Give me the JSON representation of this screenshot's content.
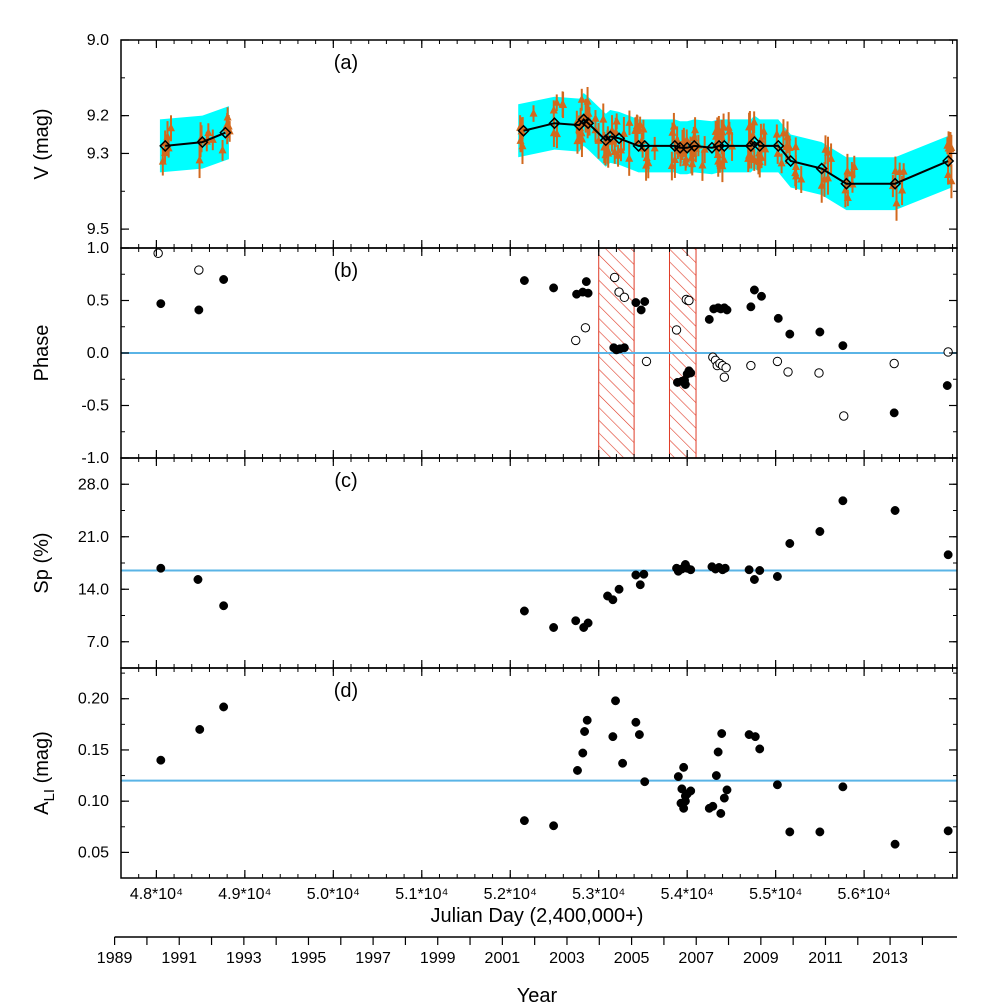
{
  "x_axis": {
    "title": "Julian Day  (2,400,000+)",
    "ticks": [
      {
        "value": 48000,
        "label": "4.8*10⁴"
      },
      {
        "value": 49000,
        "label": "4.9*10⁴"
      },
      {
        "value": 50000,
        "label": "5.0*10⁴"
      },
      {
        "value": 51000,
        "label": "5.1*10⁴"
      },
      {
        "value": 52000,
        "label": "5.2*10⁴"
      },
      {
        "value": 53000,
        "label": "5.3*10⁴"
      },
      {
        "value": 54000,
        "label": "5.4*10⁴"
      },
      {
        "value": 55000,
        "label": "5.5*10⁴"
      },
      {
        "value": 56000,
        "label": "5.6*10⁴"
      }
    ],
    "range": [
      47600,
      57050
    ]
  },
  "year_axis": {
    "title": "Year",
    "labels": [
      "1989",
      "1991",
      "1993",
      "1995",
      "1997",
      "1999",
      "2001",
      "2003",
      "2005",
      "2007",
      "2009",
      "2011",
      "2013"
    ],
    "first_year": 1989,
    "last_minor_year": 2014
  },
  "colors": {
    "envelope": "#00ffff",
    "errorbar": "#d2691e",
    "mean_line": "#000000",
    "reference_line": "#5ab4e6",
    "hatch": "#e03c28",
    "point": "#000000"
  },
  "chart_data": [
    {
      "panel": "a",
      "type": "scatter",
      "tag": "(a)",
      "ylabel": "V (mag)",
      "ylim": [
        9.0,
        9.55
      ],
      "y_inverted": true,
      "yticks": [
        {
          "value": 9.0,
          "label": "9.0"
        },
        {
          "value": 9.2,
          "label": "9.2"
        },
        {
          "value": 9.3,
          "label": "9.3"
        },
        {
          "value": 9.5,
          "label": "9.5"
        }
      ],
      "series": [
        {
          "kind": "seasonal_mean",
          "points": [
            {
              "x": 48100,
              "y": 9.28
            },
            {
              "x": 48520,
              "y": 9.27
            },
            {
              "x": 48780,
              "y": 9.245
            },
            {
              "x": 52150,
              "y": 9.24
            },
            {
              "x": 52500,
              "y": 9.22
            },
            {
              "x": 52780,
              "y": 9.225
            },
            {
              "x": 52830,
              "y": 9.21
            },
            {
              "x": 52880,
              "y": 9.22
            },
            {
              "x": 53080,
              "y": 9.265
            },
            {
              "x": 53130,
              "y": 9.255
            },
            {
              "x": 53230,
              "y": 9.26
            },
            {
              "x": 53450,
              "y": 9.28
            },
            {
              "x": 53520,
              "y": 9.28
            },
            {
              "x": 53860,
              "y": 9.28
            },
            {
              "x": 53920,
              "y": 9.285
            },
            {
              "x": 54000,
              "y": 9.285
            },
            {
              "x": 54080,
              "y": 9.28
            },
            {
              "x": 54280,
              "y": 9.285
            },
            {
              "x": 54360,
              "y": 9.28
            },
            {
              "x": 54420,
              "y": 9.28
            },
            {
              "x": 54720,
              "y": 9.28
            },
            {
              "x": 54760,
              "y": 9.27
            },
            {
              "x": 54820,
              "y": 9.28
            },
            {
              "x": 55030,
              "y": 9.28
            },
            {
              "x": 55170,
              "y": 9.32
            },
            {
              "x": 55520,
              "y": 9.34
            },
            {
              "x": 55800,
              "y": 9.38
            },
            {
              "x": 56350,
              "y": 9.38
            },
            {
              "x": 56950,
              "y": 9.32
            }
          ]
        }
      ]
    },
    {
      "panel": "b",
      "type": "scatter",
      "tag": "(b)",
      "ylabel": "Phase",
      "ylim": [
        -1.0,
        1.0
      ],
      "yticks": [
        {
          "value": 1.0,
          "label": "1.0"
        },
        {
          "value": 0.5,
          "label": "0.5"
        },
        {
          "value": 0.0,
          "label": "0.0"
        },
        {
          "value": -0.5,
          "label": "-0.5"
        },
        {
          "value": -1.0,
          "label": "-1.0"
        }
      ],
      "reference_y": 0.0,
      "hatched_x_ranges": [
        [
          53000,
          53400
        ],
        [
          53800,
          54100
        ]
      ],
      "series": [
        {
          "name": "filled",
          "points": [
            [
              48050,
              0.47
            ],
            [
              48480,
              0.41
            ],
            [
              48760,
              0.7
            ],
            [
              52160,
              0.69
            ],
            [
              52490,
              0.62
            ],
            [
              52750,
              0.56
            ],
            [
              52820,
              0.58
            ],
            [
              52860,
              0.68
            ],
            [
              52880,
              0.57
            ],
            [
              53170,
              0.05
            ],
            [
              53200,
              0.03
            ],
            [
              53240,
              0.04
            ],
            [
              53290,
              0.05
            ],
            [
              53420,
              0.48
            ],
            [
              53480,
              0.41
            ],
            [
              53520,
              0.49
            ],
            [
              53890,
              -0.28
            ],
            [
              53940,
              -0.27
            ],
            [
              53980,
              -0.3
            ],
            [
              54000,
              -0.2
            ],
            [
              54020,
              -0.17
            ],
            [
              54040,
              -0.19
            ],
            [
              53970,
              -0.26
            ],
            [
              54000,
              0.5
            ],
            [
              54250,
              0.32
            ],
            [
              54300,
              0.42
            ],
            [
              54350,
              0.43
            ],
            [
              54380,
              0.42
            ],
            [
              54420,
              0.43
            ],
            [
              54450,
              0.41
            ],
            [
              54720,
              0.44
            ],
            [
              54760,
              0.6
            ],
            [
              54840,
              0.54
            ],
            [
              55030,
              0.33
            ],
            [
              55160,
              0.18
            ],
            [
              55500,
              0.2
            ],
            [
              55760,
              0.07
            ],
            [
              56340,
              -0.57
            ],
            [
              56940,
              -0.31
            ]
          ]
        },
        {
          "name": "open",
          "points": [
            [
              48020,
              0.95
            ],
            [
              48480,
              0.79
            ],
            [
              52740,
              0.12
            ],
            [
              52850,
              0.24
            ],
            [
              53180,
              0.72
            ],
            [
              53230,
              0.58
            ],
            [
              53290,
              0.53
            ],
            [
              53540,
              -0.08
            ],
            [
              53880,
              0.22
            ],
            [
              53990,
              0.51
            ],
            [
              54020,
              0.5
            ],
            [
              54290,
              -0.04
            ],
            [
              54320,
              -0.07
            ],
            [
              54340,
              -0.12
            ],
            [
              54370,
              -0.1
            ],
            [
              54400,
              -0.12
            ],
            [
              54440,
              -0.14
            ],
            [
              54420,
              -0.23
            ],
            [
              54720,
              -0.12
            ],
            [
              55020,
              -0.08
            ],
            [
              55140,
              -0.18
            ],
            [
              55490,
              -0.19
            ],
            [
              55770,
              -0.6
            ],
            [
              56340,
              -0.1
            ],
            [
              56950,
              0.01
            ]
          ]
        }
      ]
    },
    {
      "panel": "c",
      "type": "scatter",
      "tag": "(c)",
      "ylabel": "Sp (%)",
      "ylim": [
        3.5,
        31.5
      ],
      "yticks": [
        {
          "value": 28.0,
          "label": "28.0"
        },
        {
          "value": 21.0,
          "label": "21.0"
        },
        {
          "value": 14.0,
          "label": "14.0"
        },
        {
          "value": 7.0,
          "label": "7.0"
        }
      ],
      "reference_y": 16.5,
      "series": [
        {
          "name": "filled",
          "points": [
            [
              48050,
              16.8
            ],
            [
              48470,
              15.3
            ],
            [
              48760,
              11.8
            ],
            [
              52160,
              11.1
            ],
            [
              52490,
              8.9
            ],
            [
              52740,
              9.8
            ],
            [
              52830,
              8.9
            ],
            [
              52880,
              9.5
            ],
            [
              53100,
              13.1
            ],
            [
              53160,
              12.6
            ],
            [
              53230,
              14.0
            ],
            [
              53420,
              15.9
            ],
            [
              53470,
              14.6
            ],
            [
              53510,
              16.0
            ],
            [
              53880,
              16.8
            ],
            [
              53900,
              16.4
            ],
            [
              53940,
              16.7
            ],
            [
              53980,
              17.3
            ],
            [
              54000,
              16.8
            ],
            [
              54040,
              16.6
            ],
            [
              54280,
              17.0
            ],
            [
              54320,
              16.7
            ],
            [
              54360,
              16.9
            ],
            [
              54400,
              16.6
            ],
            [
              54430,
              16.8
            ],
            [
              54700,
              16.6
            ],
            [
              54760,
              15.3
            ],
            [
              54820,
              16.5
            ],
            [
              55020,
              15.7
            ],
            [
              55160,
              20.1
            ],
            [
              55500,
              21.7
            ],
            [
              55760,
              25.8
            ],
            [
              56350,
              24.5
            ],
            [
              56950,
              18.6
            ]
          ]
        }
      ]
    },
    {
      "panel": "d",
      "type": "scatter",
      "tag": "(d)",
      "ylabel": "A_LI (mag)",
      "ylabel_main": "A",
      "ylabel_sub": "LI",
      "ylabel_unit": " (mag)",
      "ylim": [
        0.025,
        0.23
      ],
      "yticks": [
        {
          "value": 0.2,
          "label": "0.20"
        },
        {
          "value": 0.15,
          "label": "0.15"
        },
        {
          "value": 0.1,
          "label": "0.10"
        },
        {
          "value": 0.05,
          "label": "0.05"
        }
      ],
      "reference_y": 0.12,
      "series": [
        {
          "name": "filled",
          "points": [
            [
              48050,
              0.14
            ],
            [
              48490,
              0.17
            ],
            [
              48760,
              0.192
            ],
            [
              52160,
              0.081
            ],
            [
              52490,
              0.076
            ],
            [
              52760,
              0.13
            ],
            [
              52820,
              0.147
            ],
            [
              52840,
              0.168
            ],
            [
              52870,
              0.179
            ],
            [
              53160,
              0.163
            ],
            [
              53190,
              0.198
            ],
            [
              53270,
              0.137
            ],
            [
              53420,
              0.177
            ],
            [
              53460,
              0.165
            ],
            [
              53520,
              0.119
            ],
            [
              53900,
              0.124
            ],
            [
              53960,
              0.133
            ],
            [
              53940,
              0.112
            ],
            [
              53980,
              0.1
            ],
            [
              53960,
              0.093
            ],
            [
              53930,
              0.098
            ],
            [
              54000,
              0.107
            ],
            [
              54040,
              0.11
            ],
            [
              53980,
              0.105
            ],
            [
              54250,
              0.093
            ],
            [
              54290,
              0.095
            ],
            [
              54330,
              0.125
            ],
            [
              54350,
              0.148
            ],
            [
              54390,
              0.166
            ],
            [
              54380,
              0.088
            ],
            [
              54420,
              0.103
            ],
            [
              54450,
              0.111
            ],
            [
              54700,
              0.165
            ],
            [
              54770,
              0.163
            ],
            [
              54820,
              0.151
            ],
            [
              55020,
              0.116
            ],
            [
              55160,
              0.07
            ],
            [
              55500,
              0.07
            ],
            [
              55760,
              0.114
            ],
            [
              56350,
              0.058
            ],
            [
              56950,
              0.071
            ]
          ]
        }
      ]
    }
  ]
}
